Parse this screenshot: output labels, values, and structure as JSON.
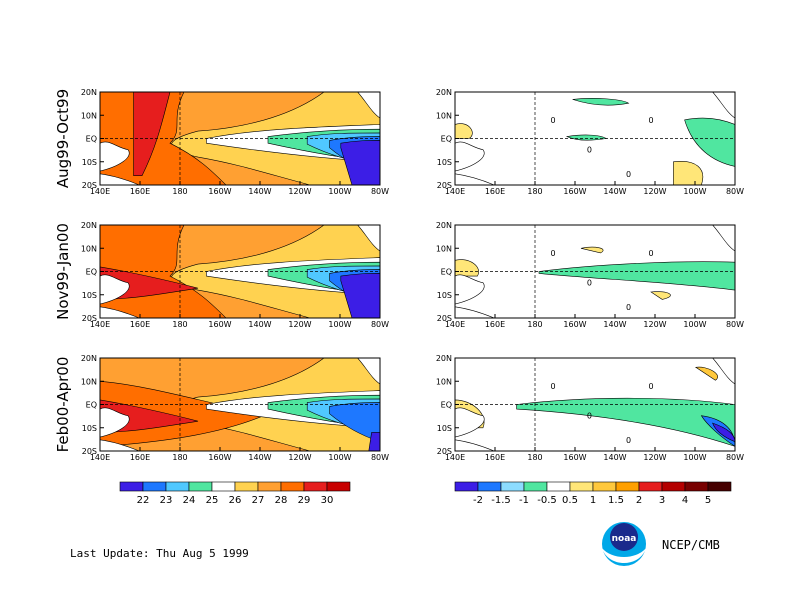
{
  "rows": [
    {
      "season": "Aug99-Oct99"
    },
    {
      "season": "Nov99-Jan00"
    },
    {
      "season": "Feb00-Apr00"
    }
  ],
  "lat_labels": [
    "20N",
    "10N",
    "EQ",
    "10S",
    "20S"
  ],
  "lon_labels": [
    "140E",
    "160E",
    "180",
    "160W",
    "140W",
    "120W",
    "100W",
    "80W"
  ],
  "sst_colorbar": {
    "labels": [
      "22",
      "23",
      "24",
      "25",
      "26",
      "27",
      "28",
      "29",
      "30"
    ],
    "colors": [
      "#3c1ee6",
      "#1e78ff",
      "#50c8ff",
      "#50e6a0",
      "#ffffff",
      "#ffd250",
      "#ffa032",
      "#ff6e00",
      "#e61e1e",
      "#c80000"
    ]
  },
  "anom_colorbar": {
    "labels": [
      "-2",
      "-1.5",
      "-1",
      "-0.5",
      "0.5",
      "1",
      "1.5",
      "2",
      "3",
      "4",
      "5"
    ],
    "colors": [
      "#3c1ee6",
      "#1e78ff",
      "#8cdcff",
      "#50e6a0",
      "#ffffff",
      "#ffe678",
      "#ffc83c",
      "#ffa000",
      "#e61e1e",
      "#b40000",
      "#780000",
      "#460000"
    ]
  },
  "contour_label": "0",
  "footer": {
    "last_update": "Last Update:  Thu Aug 5 1999",
    "credit": "NCEP/CMB",
    "logo_text": "noaa"
  }
}
